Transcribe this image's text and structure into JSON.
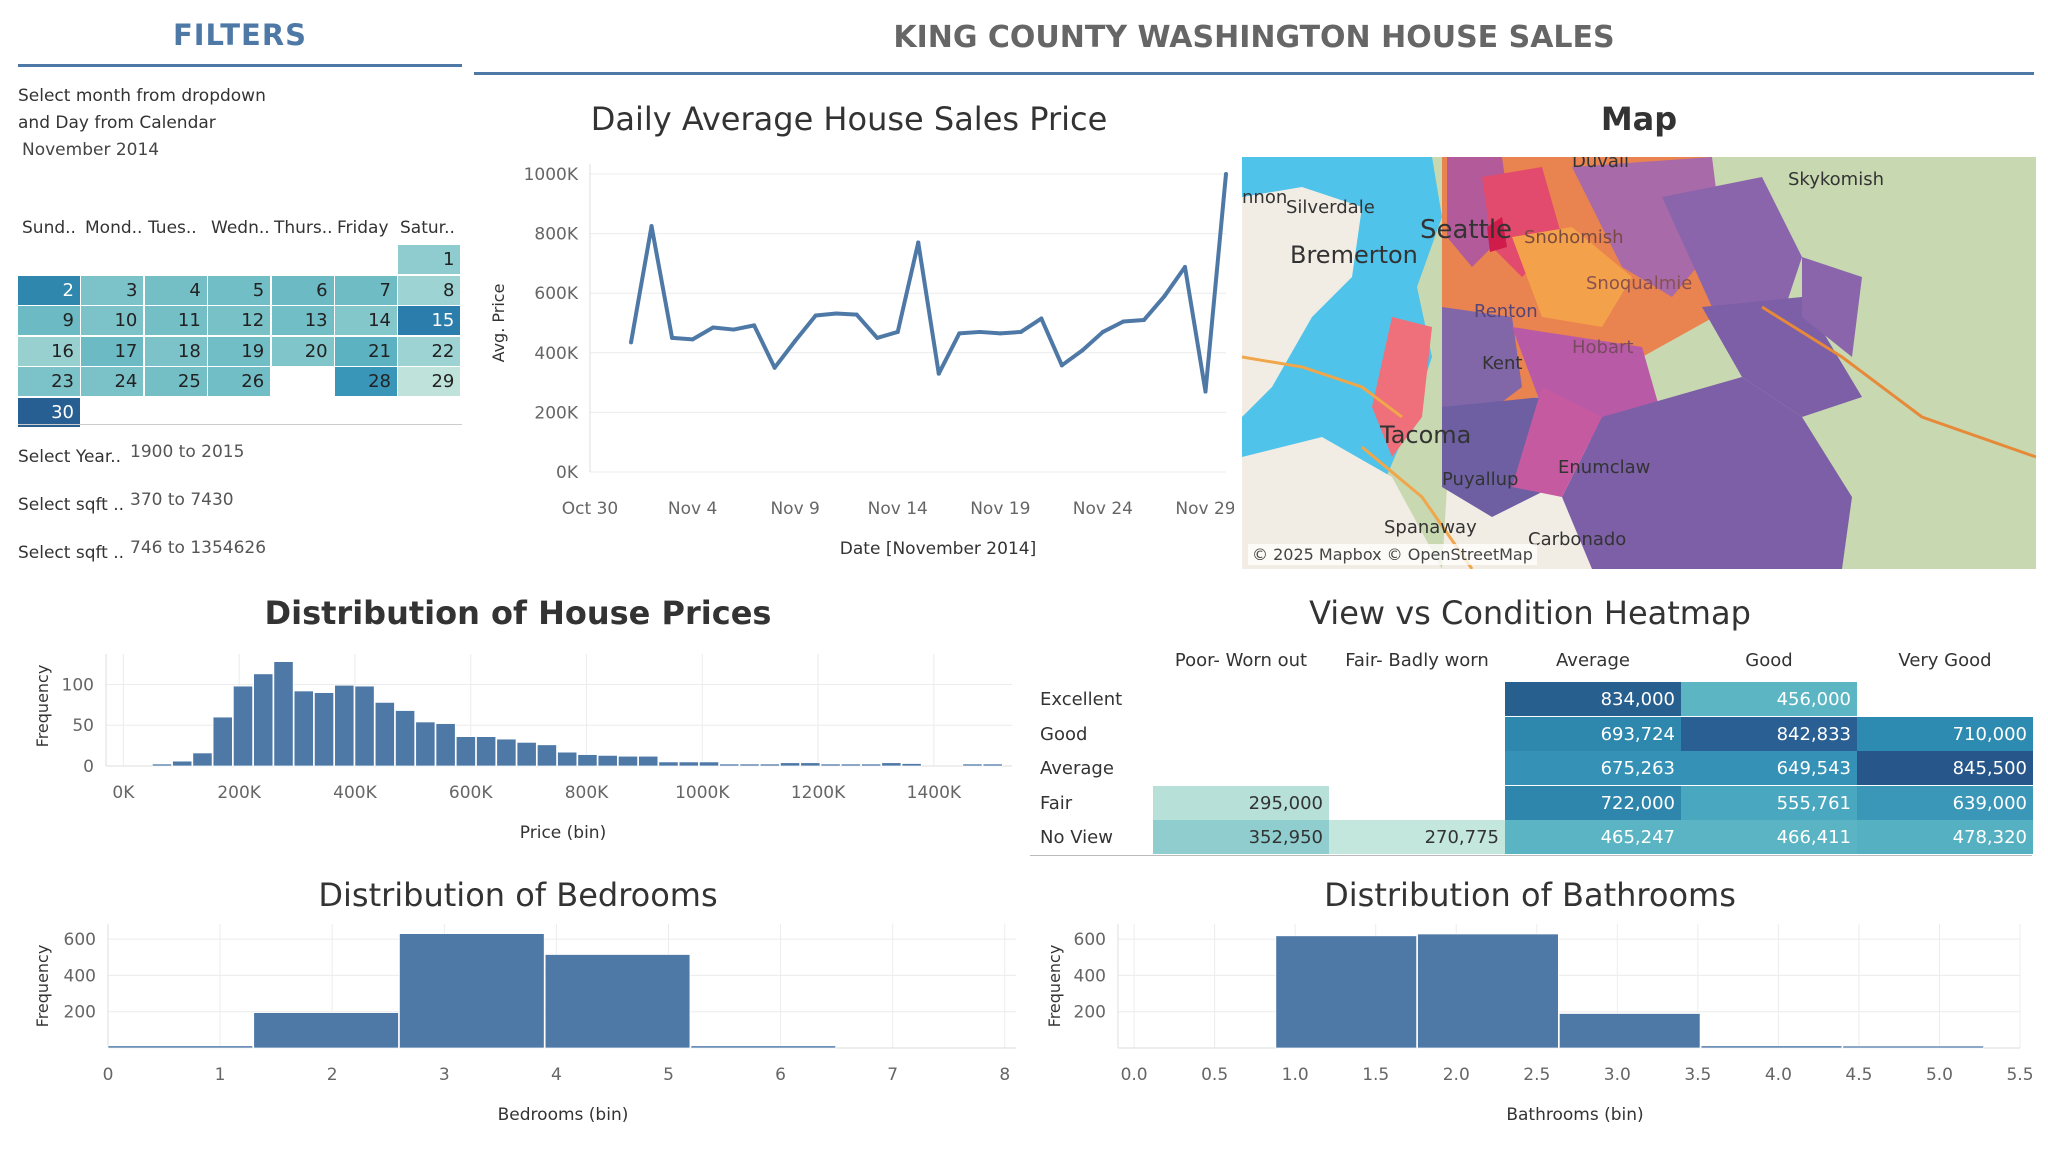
{
  "filters": {
    "title": "FILTERS",
    "instruction_line1": "Select month from dropdown",
    "instruction_line2": "and Day from Calendar",
    "month_value": "November 2014",
    "calendar": {
      "day_headers": [
        "Sund..",
        "Mond..",
        "Tues..",
        "Wedn..",
        "Thurs..",
        "Friday",
        "Satur.."
      ],
      "days": [
        {
          "day": "1",
          "col": 6,
          "row": 0,
          "color": "#8ecccf"
        },
        {
          "day": "2",
          "col": 0,
          "row": 1,
          "color": "#2f87ad"
        },
        {
          "day": "3",
          "col": 1,
          "row": 1,
          "color": "#7cc3c9"
        },
        {
          "day": "4",
          "col": 2,
          "row": 1,
          "color": "#74bfc6"
        },
        {
          "day": "5",
          "col": 3,
          "row": 1,
          "color": "#72bec6"
        },
        {
          "day": "6",
          "col": 4,
          "row": 1,
          "color": "#6cbac4"
        },
        {
          "day": "7",
          "col": 5,
          "row": 1,
          "color": "#6fbcc5"
        },
        {
          "day": "8",
          "col": 6,
          "row": 1,
          "color": "#9dd3d2"
        },
        {
          "day": "9",
          "col": 0,
          "row": 2,
          "color": "#6cbac4"
        },
        {
          "day": "10",
          "col": 1,
          "row": 2,
          "color": "#7cc3c9"
        },
        {
          "day": "11",
          "col": 2,
          "row": 2,
          "color": "#74bfc6"
        },
        {
          "day": "12",
          "col": 3,
          "row": 2,
          "color": "#77c1c7"
        },
        {
          "day": "13",
          "col": 4,
          "row": 2,
          "color": "#72bec6"
        },
        {
          "day": "14",
          "col": 5,
          "row": 2,
          "color": "#83c7cb"
        },
        {
          "day": "15",
          "col": 6,
          "row": 2,
          "color": "#2b7dab"
        },
        {
          "day": "16",
          "col": 0,
          "row": 3,
          "color": "#98d0d0"
        },
        {
          "day": "17",
          "col": 1,
          "row": 3,
          "color": "#6cbac4"
        },
        {
          "day": "18",
          "col": 2,
          "row": 3,
          "color": "#7cc3c9"
        },
        {
          "day": "19",
          "col": 3,
          "row": 3,
          "color": "#72bec6"
        },
        {
          "day": "20",
          "col": 4,
          "row": 3,
          "color": "#80c5ca"
        },
        {
          "day": "21",
          "col": 5,
          "row": 3,
          "color": "#5db2c1"
        },
        {
          "day": "22",
          "col": 6,
          "row": 3,
          "color": "#9dd3d2"
        },
        {
          "day": "23",
          "col": 0,
          "row": 4,
          "color": "#7cc3c9"
        },
        {
          "day": "24",
          "col": 1,
          "row": 4,
          "color": "#7ac2c8"
        },
        {
          "day": "25",
          "col": 2,
          "row": 4,
          "color": "#74bfc6"
        },
        {
          "day": "26",
          "col": 3,
          "row": 4,
          "color": "#72bec6"
        },
        {
          "day": "28",
          "col": 5,
          "row": 4,
          "color": "#3a96b8"
        },
        {
          "day": "29",
          "col": 6,
          "row": 4,
          "color": "#bfe3da"
        },
        {
          "day": "30",
          "col": 0,
          "row": 5,
          "color": "#275f93"
        }
      ]
    },
    "year_label": "Select Year..",
    "year_value": "1900 to 2015",
    "sqft1_label": "Select sqft ..",
    "sqft1_value": "370 to 7430",
    "sqft2_label": "Select sqft ..",
    "sqft2_value": "746 to 1354626"
  },
  "header": {
    "title": "KING COUNTY WASHINGTON HOUSE SALES"
  },
  "map": {
    "title": "Map",
    "labels": [
      "Silverdale",
      "Bremerton",
      "Seattle",
      "Tacoma",
      "Puyallup",
      "Spanaway",
      "Carbonado",
      "Enumclaw",
      "Kent",
      "Skykomish",
      "Snohomish",
      "Snoqualmie",
      "Hobart",
      "Renton",
      "Duvall",
      "nnon"
    ],
    "attribution": "© 2025 Mapbox © OpenStreetMap"
  },
  "chart_data": [
    {
      "type": "line",
      "title": "Daily Average House Sales Price",
      "xlabel": "Date [November 2014]",
      "ylabel": "Avg. Price",
      "x": [
        1,
        2,
        3,
        4,
        5,
        6,
        7,
        8,
        9,
        10,
        11,
        12,
        13,
        14,
        15,
        16,
        17,
        18,
        19,
        20,
        21,
        22,
        23,
        24,
        25,
        26,
        27,
        28,
        29,
        30
      ],
      "values": [
        435000,
        825000,
        450000,
        445000,
        485000,
        478000,
        492000,
        350000,
        440000,
        525000,
        532000,
        528000,
        450000,
        470000,
        770000,
        330000,
        465000,
        470000,
        465000,
        470000,
        515000,
        358000,
        408000,
        470000,
        505000,
        510000,
        590000,
        688000,
        270000,
        1000000
      ],
      "x_tick_labels": [
        "Oct 30",
        "Nov 4",
        "Nov 9",
        "Nov 14",
        "Nov 19",
        "Nov 24",
        "Nov 29"
      ],
      "y_tick_labels": [
        "0K",
        "200K",
        "400K",
        "600K",
        "800K",
        "1000K"
      ],
      "ylim": [
        0,
        1000000
      ]
    },
    {
      "type": "bar",
      "title": "Distribution of House Prices",
      "xlabel": "Price (bin)",
      "ylabel": "Frequency",
      "bin_width": 35000,
      "bin_starts": [
        50000,
        85000,
        120000,
        155000,
        190000,
        225000,
        260000,
        295000,
        330000,
        365000,
        400000,
        435000,
        470000,
        505000,
        540000,
        575000,
        610000,
        645000,
        680000,
        715000,
        750000,
        785000,
        820000,
        855000,
        890000,
        925000,
        960000,
        995000,
        1030000,
        1065000,
        1100000,
        1135000,
        1170000,
        1205000,
        1240000,
        1275000,
        1310000,
        1345000,
        1380000,
        1415000,
        1450000,
        1485000
      ],
      "values": [
        2,
        6,
        16,
        60,
        98,
        113,
        128,
        92,
        90,
        99,
        98,
        78,
        68,
        54,
        52,
        36,
        36,
        33,
        29,
        26,
        17,
        14,
        13,
        12,
        12,
        5,
        5,
        5,
        1,
        1,
        1,
        4,
        4,
        2,
        2,
        1,
        4,
        3,
        0,
        0,
        1,
        1
      ],
      "x_tick_labels": [
        "0K",
        "200K",
        "400K",
        "600K",
        "800K",
        "1000K",
        "1200K",
        "1400K"
      ],
      "y_tick_labels": [
        "0",
        "50",
        "100"
      ],
      "ylim": [
        0,
        130
      ]
    },
    {
      "type": "heatmap",
      "title": "View vs Condition Heatmap",
      "columns": [
        "Poor- Worn out",
        "Fair- Badly worn",
        "Average",
        "Good",
        "Very Good"
      ],
      "rows": [
        "Excellent",
        "Good",
        "Average",
        "Fair",
        "No View"
      ],
      "cells": [
        [
          null,
          null,
          {
            "v": "834,000",
            "c": "#275f8f"
          },
          {
            "v": "456,000",
            "c": "#5bb5c3"
          },
          null
        ],
        [
          null,
          null,
          {
            "v": "693,724",
            "c": "#2e88ae"
          },
          {
            "v": "842,833",
            "c": "#2a5f93"
          },
          {
            "v": "710,000",
            "c": "#2d8bb1"
          }
        ],
        [
          null,
          null,
          {
            "v": "675,263",
            "c": "#3592b6"
          },
          {
            "v": "649,543",
            "c": "#3592b6"
          },
          {
            "v": "845,500",
            "c": "#27568a"
          }
        ],
        [
          {
            "v": "295,000",
            "c": "#b7e0d8"
          },
          null,
          {
            "v": "722,000",
            "c": "#2f86ad"
          },
          {
            "v": "555,761",
            "c": "#4aa7c0"
          },
          {
            "v": "639,000",
            "c": "#3a97b8"
          }
        ],
        [
          {
            "v": "352,950",
            "c": "#8fcdcf"
          },
          {
            "v": "270,775",
            "c": "#c3e6dd"
          },
          {
            "v": "465,247",
            "c": "#5ab4c3"
          },
          {
            "v": "466,411",
            "c": "#5ab4c3"
          },
          {
            "v": "478,320",
            "c": "#55b0c2"
          }
        ]
      ]
    },
    {
      "type": "bar",
      "title": "Distribution of Bedrooms",
      "xlabel": "Bedrooms (bin)",
      "ylabel": "Frequency",
      "bin_width": 1.3,
      "bin_starts": [
        0,
        1.3,
        2.6,
        3.9,
        5.2
      ],
      "values": [
        12,
        195,
        630,
        515,
        12
      ],
      "x_tick_labels": [
        "0",
        "1",
        "2",
        "3",
        "4",
        "5",
        "6",
        "7",
        "8"
      ],
      "y_tick_labels": [
        "200",
        "400",
        "600"
      ],
      "ylim": [
        0,
        650
      ]
    },
    {
      "type": "bar",
      "title": "Distribution of Bathrooms",
      "xlabel": "Bathrooms (bin)",
      "ylabel": "Frequency",
      "bin_width": 0.88,
      "bin_starts": [
        0,
        0.88,
        1.76,
        2.64,
        3.52,
        4.4
      ],
      "values": [
        0,
        618,
        628,
        190,
        12,
        4
      ],
      "x_tick_labels": [
        "0.0",
        "0.5",
        "1.0",
        "1.5",
        "2.0",
        "2.5",
        "3.0",
        "3.5",
        "4.0",
        "4.5",
        "5.0",
        "5.5"
      ],
      "y_tick_labels": [
        "200",
        "400",
        "600"
      ],
      "ylim": [
        0,
        650
      ]
    }
  ]
}
